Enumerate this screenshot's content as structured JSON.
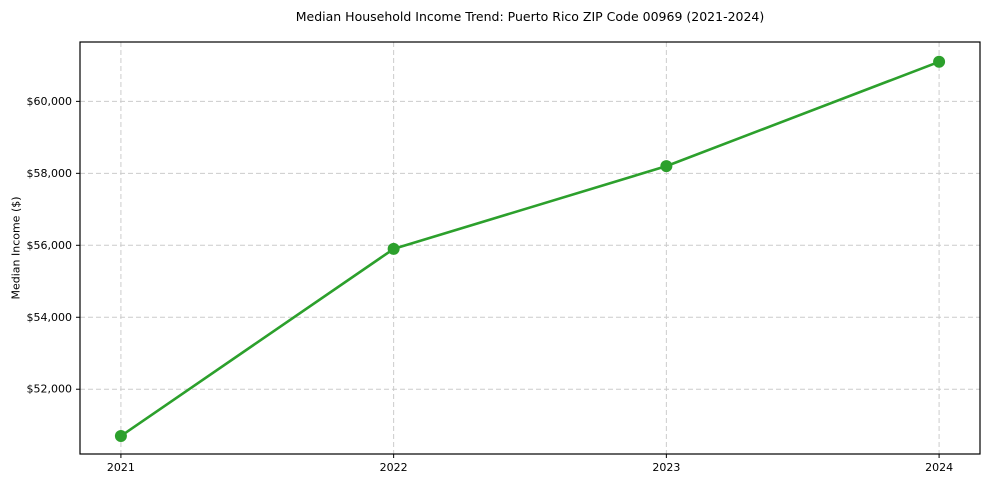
{
  "chart_data": {
    "type": "line",
    "title": "Median Household Income Trend: Puerto Rico ZIP Code 00969 (2021-2024)",
    "xlabel": "",
    "ylabel": "Median Income ($)",
    "x": [
      2021,
      2022,
      2023,
      2024
    ],
    "series": [
      {
        "name": "Median household income",
        "values": [
          50700,
          55900,
          58200,
          61100
        ],
        "color": "#2ca02c",
        "marker": "circle"
      }
    ],
    "xticks": [
      2021,
      2022,
      2023,
      2024
    ],
    "xtick_labels": [
      "2021",
      "2022",
      "2023",
      "2024"
    ],
    "yticks": [
      52000,
      54000,
      56000,
      58000,
      60000
    ],
    "ytick_labels": [
      "$52,000",
      "$54,000",
      "$56,000",
      "$58,000",
      "$60,000"
    ],
    "xlim": [
      2020.85,
      2024.15
    ],
    "ylim": [
      50200,
      61650
    ],
    "grid": true,
    "grid_style": "dashed",
    "grid_color": "#cccccc",
    "legend_position": "none",
    "background_color": "#ffffff",
    "spine_color": "#000000",
    "text_color": "#000000"
  }
}
